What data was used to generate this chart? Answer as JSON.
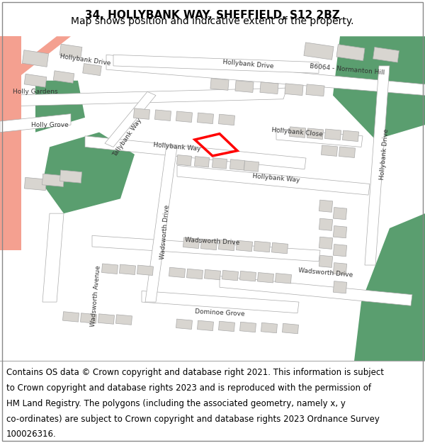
{
  "title_line1": "34, HOLLYBANK WAY, SHEFFIELD, S12 2BZ",
  "title_line2": "Map shows position and indicative extent of the property.",
  "footer_lines": [
    "Contains OS data © Crown copyright and database right 2021. This information is subject",
    "to Crown copyright and database rights 2023 and is reproduced with the permission of",
    "HM Land Registry. The polygons (including the associated geometry, namely x, y",
    "co-ordinates) are subject to Crown copyright and database rights 2023 Ordnance Survey",
    "100026316."
  ],
  "title_fontsize": 11,
  "subtitle_fontsize": 10,
  "footer_fontsize": 8.5,
  "fig_width": 6.0,
  "fig_height": 6.25,
  "dpi": 100,
  "bg_color": "#ffffff",
  "map_bg": "#f2efe9",
  "road_color": "#ffffff",
  "road_edge": "#aaaaaa",
  "green_color": "#5a9e6f",
  "building_color": "#d8d5d0",
  "building_edge": "#aaaaaa",
  "salmon_color": "#f4a090",
  "highlight_color": "#ff0000",
  "label_color": "#333333",
  "label_fontsize": 6.5
}
